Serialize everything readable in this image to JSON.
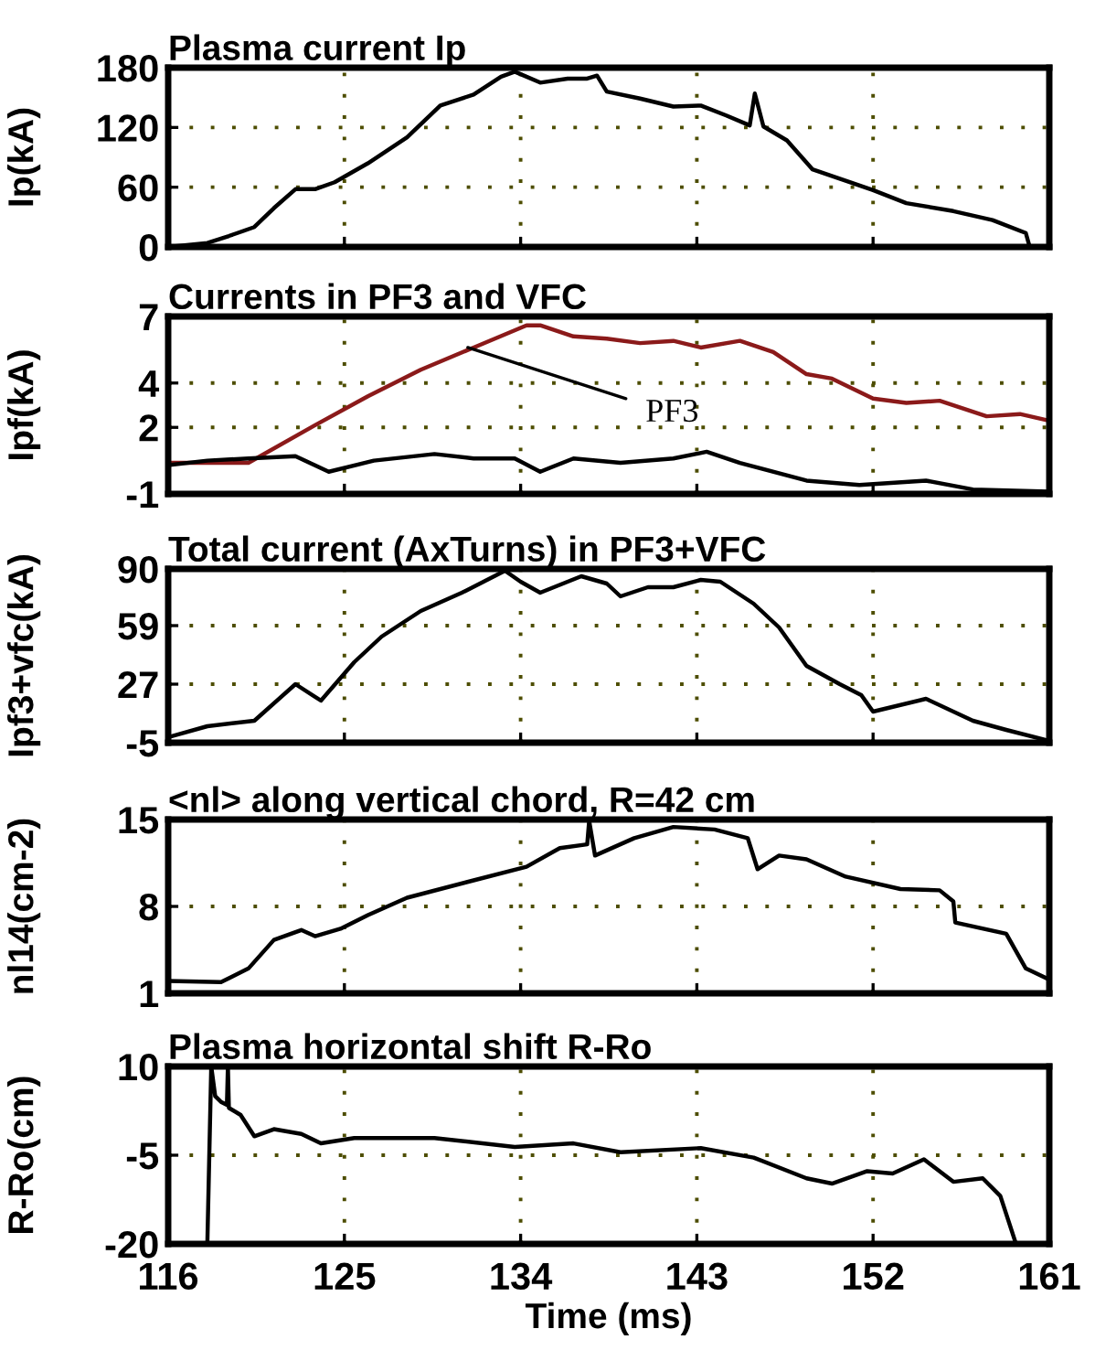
{
  "chart_data": [
    {
      "type": "line",
      "title": "Plasma current Ip",
      "ylabel": "Ip(kA)",
      "xlim": [
        116,
        161
      ],
      "xticks": [
        116,
        125,
        134,
        143,
        152,
        161
      ],
      "ylim": [
        0,
        180
      ],
      "yticks": [
        0,
        60,
        120,
        180
      ],
      "grid": true,
      "tick_labels": "y",
      "series": [
        {
          "color": "#000000",
          "x": [
            116,
            118.0,
            119.1,
            120.4,
            121.4,
            122.5,
            123.5,
            124.5,
            126.2,
            128.2,
            129.9,
            131.6,
            133.0,
            133.7,
            135.0,
            136.4,
            137.4,
            137.9,
            138.4,
            140.1,
            141.8,
            143.2,
            144.5,
            145.7,
            145.96,
            146.4,
            147.6,
            148.9,
            152.0,
            153.7,
            156.1,
            158.1,
            159.8,
            160.0,
            161
          ],
          "values": [
            0,
            4,
            11,
            20,
            39,
            58,
            58,
            65,
            84,
            110,
            142,
            153,
            171,
            176,
            165,
            169,
            169,
            172,
            156,
            149,
            141,
            142,
            132,
            122,
            154,
            121,
            107,
            78,
            57,
            44,
            36,
            27,
            14,
            0,
            0
          ]
        }
      ]
    },
    {
      "type": "line",
      "title": "Currents in PF3 and VFC",
      "ylabel": "Ipf(kA)",
      "xlim": [
        116,
        161
      ],
      "xticks": [
        116,
        125,
        134,
        143,
        152,
        161
      ],
      "ylim": [
        -1,
        7
      ],
      "yticks": [
        -1,
        2,
        4,
        7
      ],
      "grid": true,
      "tick_labels": "y",
      "annotations": [
        {
          "text": "PF3",
          "x": 131.3,
          "y": 5.6
        }
      ],
      "series": [
        {
          "color": "#8b1a1a",
          "x": [
            116,
            120.1,
            123.5,
            126.2,
            128.9,
            131.6,
            134.3,
            135.0,
            136.7,
            138.4,
            140.1,
            141.8,
            143.2,
            145.2,
            146.9,
            148.6,
            149.9,
            152.0,
            153.7,
            155.4,
            157.8,
            159.5,
            161
          ],
          "values": [
            0.4,
            0.4,
            2.1,
            3.4,
            4.6,
            5.6,
            6.6,
            6.6,
            6.1,
            6.0,
            5.8,
            5.9,
            5.6,
            5.9,
            5.4,
            4.4,
            4.2,
            3.3,
            3.1,
            3.2,
            2.5,
            2.6,
            2.3
          ]
        },
        {
          "color": "#000000",
          "x": [
            116,
            118,
            120.1,
            122.5,
            124.2,
            126.5,
            129.6,
            131.6,
            133.7,
            135.0,
            136.7,
            139.1,
            141.8,
            143.5,
            145.2,
            148.6,
            151.3,
            154.7,
            157.1,
            161
          ],
          "values": [
            0.3,
            0.5,
            0.6,
            0.7,
            0.0,
            0.5,
            0.8,
            0.6,
            0.6,
            0.0,
            0.6,
            0.4,
            0.6,
            0.9,
            0.4,
            -0.4,
            -0.6,
            -0.4,
            -0.8,
            -0.9
          ]
        }
      ]
    },
    {
      "type": "line",
      "title": "Total current (AxTurns) in PF3+VFC",
      "ylabel": "Ipf3+vfc(kA)",
      "xlim": [
        116,
        161
      ],
      "xticks": [
        116,
        125,
        134,
        143,
        152,
        161
      ],
      "ylim": [
        -5,
        90
      ],
      "yticks": [
        -5,
        27,
        59,
        90
      ],
      "grid": true,
      "tick_labels": "y",
      "series": [
        {
          "color": "#000000",
          "x": [
            116,
            118,
            120.4,
            122.5,
            123.8,
            125.5,
            126.9,
            128.9,
            131.0,
            133.2,
            134.0,
            135.0,
            137.1,
            138.4,
            139.1,
            140.5,
            141.8,
            143.2,
            144.2,
            145.9,
            147.2,
            148.6,
            150.3,
            151.4,
            152.0,
            154.7,
            157.1,
            158.8,
            161
          ],
          "values": [
            -2,
            4,
            7,
            27,
            18,
            39,
            53,
            67,
            77,
            89,
            83,
            77,
            86,
            82,
            75,
            80,
            80,
            84,
            83,
            71,
            58,
            37,
            27,
            21,
            12,
            19,
            7,
            2,
            -4
          ]
        }
      ]
    },
    {
      "type": "line",
      "title": "<nl> along vertical chord, R=42 cm",
      "ylabel": "nl14(cm-2)",
      "xlim": [
        116,
        161
      ],
      "xticks": [
        116,
        125,
        134,
        143,
        152,
        161
      ],
      "ylim": [
        1,
        15
      ],
      "yticks": [
        1,
        8,
        15
      ],
      "grid": true,
      "tick_labels": "y",
      "series": [
        {
          "color": "#000000",
          "x": [
            116,
            118.7,
            120.1,
            121.4,
            122.8,
            123.5,
            124.8,
            126.2,
            128.2,
            131.6,
            134.3,
            136.0,
            137.4,
            137.5,
            137.8,
            139.8,
            141.8,
            143.9,
            145.6,
            146.1,
            147.2,
            148.6,
            150.6,
            153.4,
            155.4,
            156.1,
            156.2,
            158.8,
            159.8,
            161
          ],
          "values": [
            2.0,
            1.9,
            3.0,
            5.3,
            6.1,
            5.6,
            6.2,
            7.3,
            8.7,
            10.1,
            11.2,
            12.7,
            13.0,
            14.9,
            12.1,
            13.5,
            14.4,
            14.2,
            13.5,
            11.0,
            12.1,
            11.8,
            10.4,
            9.4,
            9.3,
            8.4,
            6.7,
            5.8,
            3.0,
            2.1
          ]
        }
      ]
    },
    {
      "type": "line",
      "title": "Plasma horizontal shift R-Ro",
      "ylabel": "R-Ro(cm)",
      "xlabel": "Time (ms)",
      "xlim": [
        116,
        161
      ],
      "xticks": [
        116,
        125,
        134,
        143,
        152,
        161
      ],
      "ylim": [
        -20,
        10
      ],
      "yticks": [
        -20,
        -5,
        10
      ],
      "grid": true,
      "series": [
        {
          "color": "#000000",
          "x": [
            118.0,
            118.2,
            118.4,
            118.7,
            119.0,
            119.05,
            119.1,
            119.7,
            120.4,
            121.4,
            122.8,
            123.8,
            125.5,
            129.6,
            133.7,
            136.7,
            139.1,
            143.2,
            145.9,
            148.6,
            149.9,
            151.7,
            153.0,
            154.6,
            156.1,
            157.6,
            158.5,
            159.3
          ],
          "values": [
            -20,
            10,
            5,
            4,
            3.5,
            10,
            3.0,
            1.8,
            -1.8,
            -0.6,
            -1.4,
            -3.0,
            -2.1,
            -2.1,
            -3.6,
            -3.0,
            -4.5,
            -3.8,
            -5.4,
            -8.9,
            -9.8,
            -7.7,
            -8.1,
            -5.7,
            -9.5,
            -8.9,
            -11.9,
            -20
          ]
        }
      ]
    }
  ]
}
